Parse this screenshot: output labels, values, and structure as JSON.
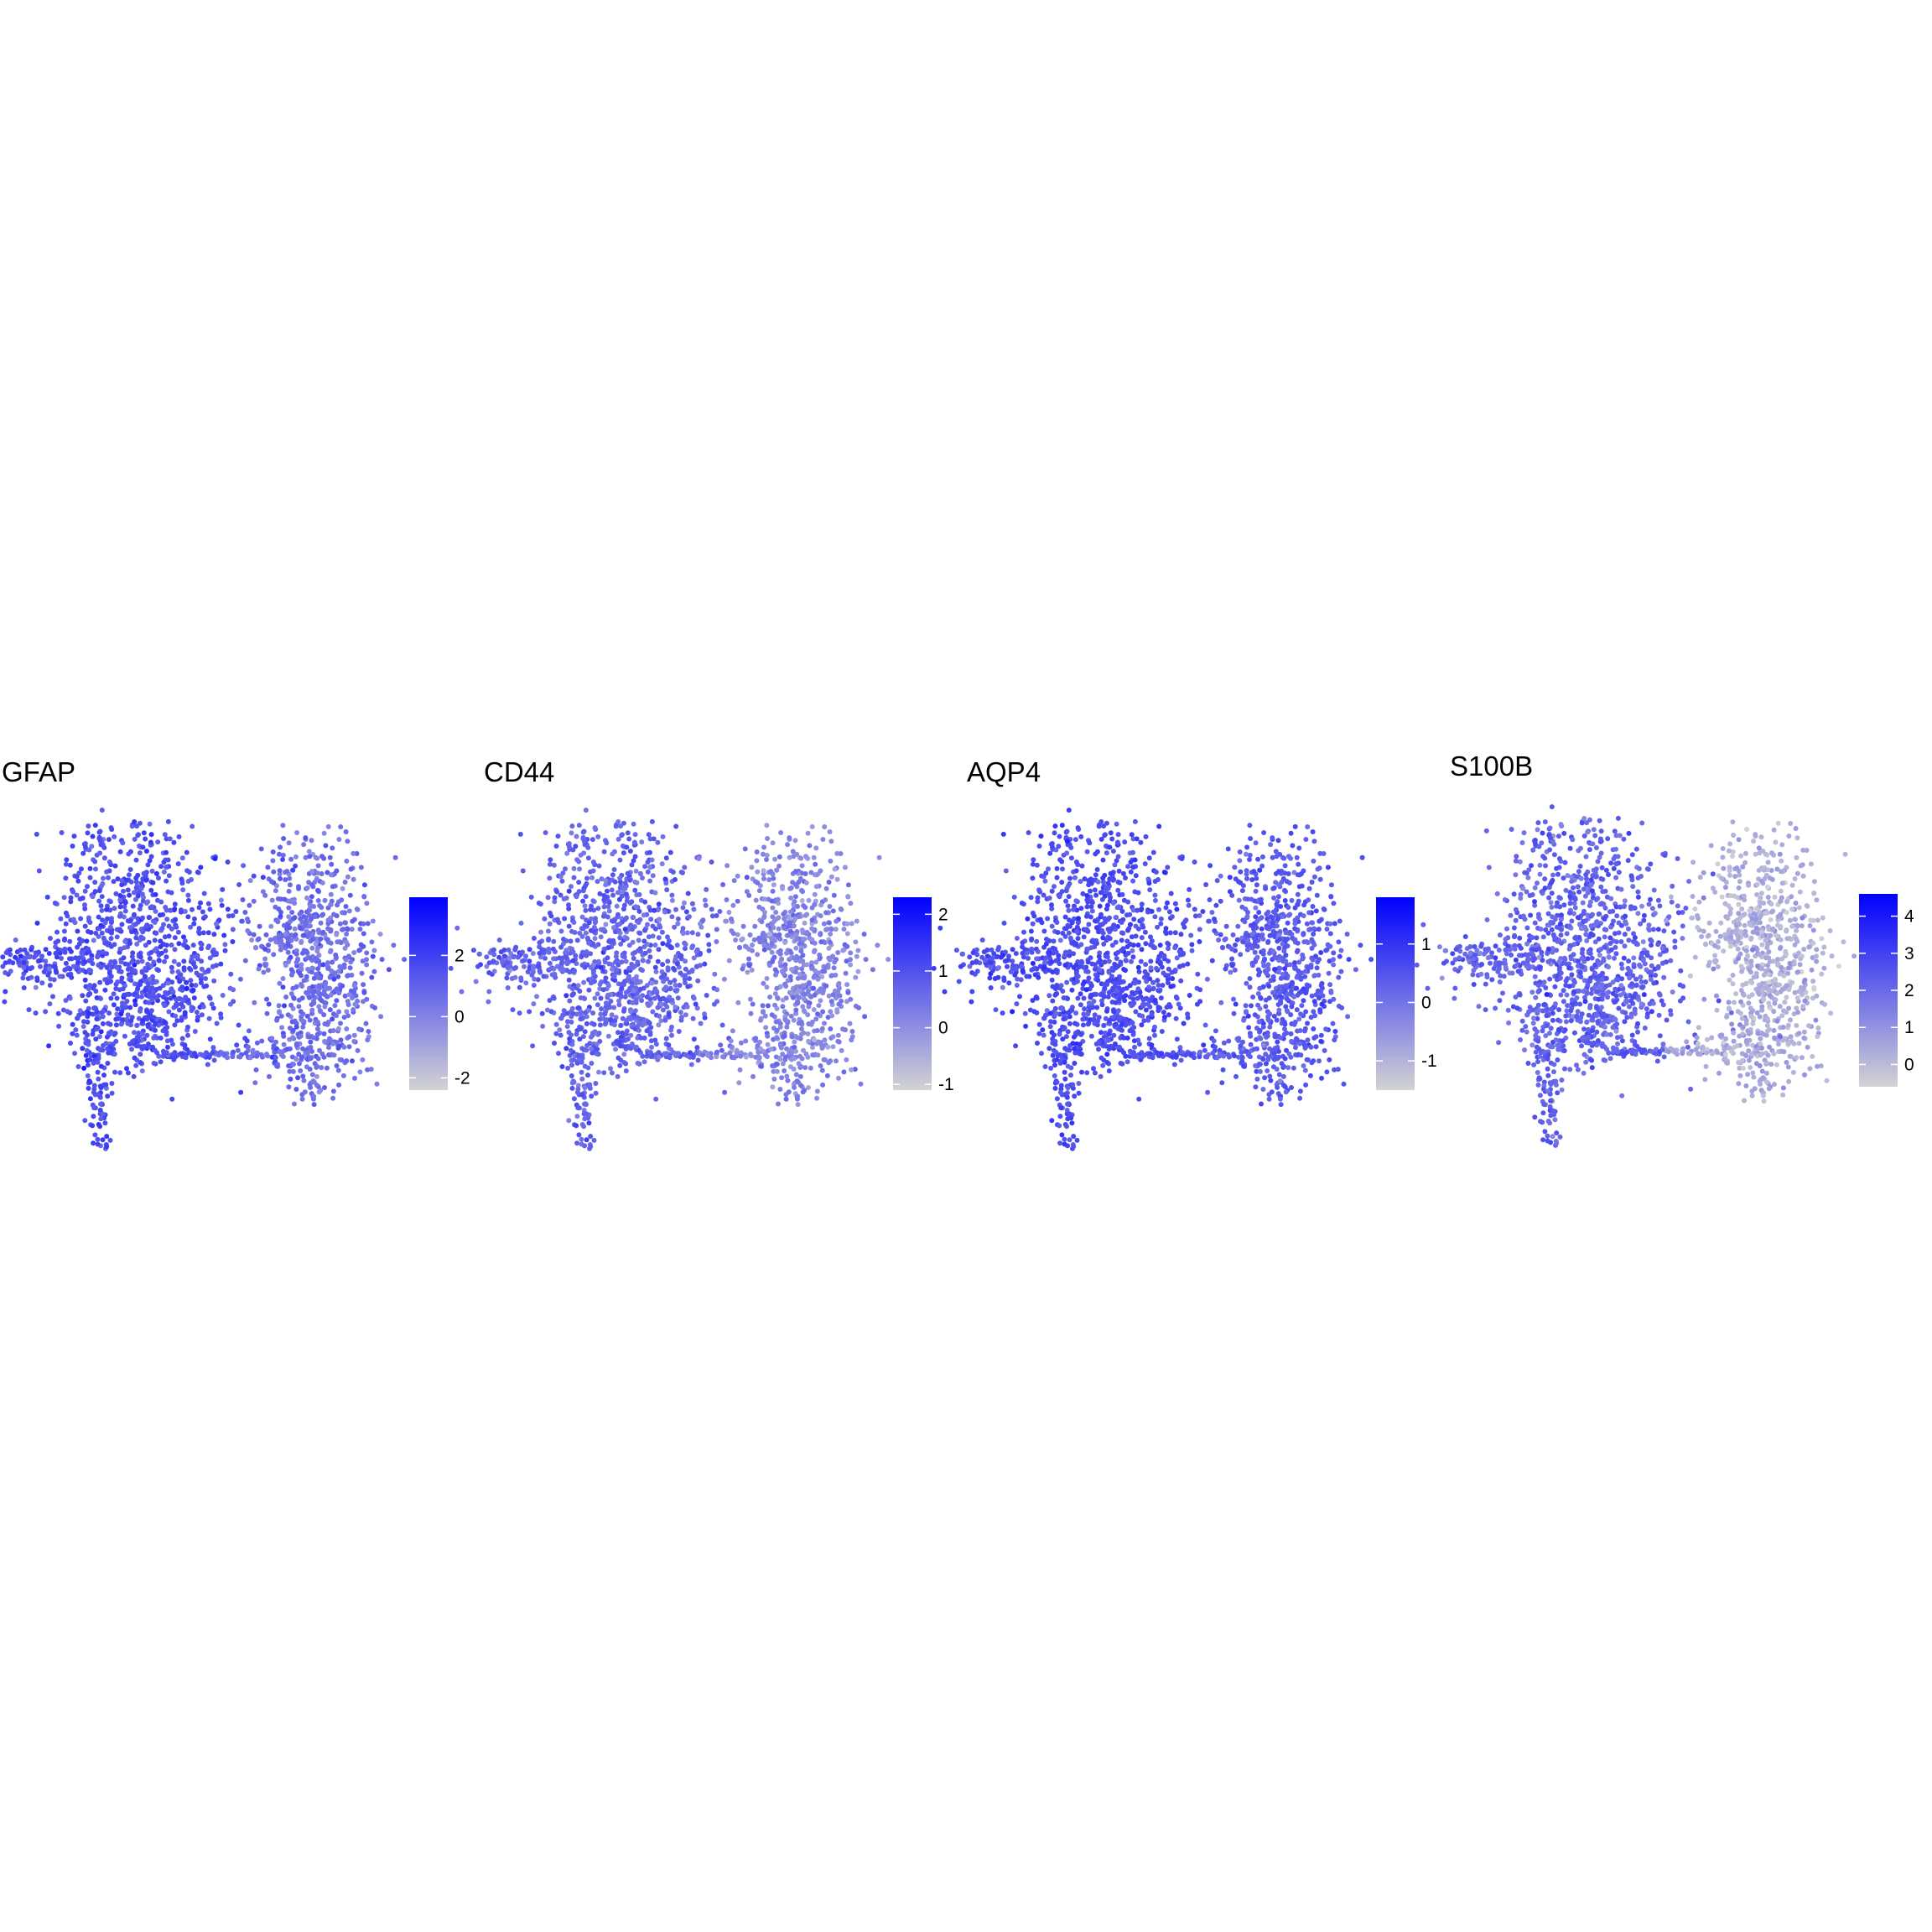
{
  "figure": {
    "panel_count": 4
  },
  "chart_data": [
    {
      "type": "scatter",
      "title": "GFAP",
      "xlabel": "",
      "ylabel": "",
      "grid": false,
      "legend": "right",
      "color_scale": {
        "low": "#d3d3d3",
        "high": "#0000ff",
        "min": -2.4,
        "max": 3.9
      },
      "colorbar_ticks": [
        {
          "value": 2,
          "label": "2"
        },
        {
          "value": 0,
          "label": "0"
        },
        {
          "value": -2,
          "label": "-2"
        }
      ],
      "expression_profile": {
        "left_cluster_mean": 1.5,
        "right_cluster_mean": 0.6,
        "variation": 0.9
      }
    },
    {
      "type": "scatter",
      "title": "CD44",
      "xlabel": "",
      "ylabel": "",
      "grid": false,
      "legend": "right",
      "color_scale": {
        "low": "#d3d3d3",
        "high": "#0000ff",
        "min": -1.1,
        "max": 2.3
      },
      "colorbar_ticks": [
        {
          "value": 2,
          "label": "2"
        },
        {
          "value": 1,
          "label": "1"
        },
        {
          "value": 0,
          "label": "0"
        },
        {
          "value": -1,
          "label": "-1"
        }
      ],
      "expression_profile": {
        "left_cluster_mean": 0.7,
        "right_cluster_mean": 0.2,
        "variation": 0.5
      }
    },
    {
      "type": "scatter",
      "title": "AQP4",
      "xlabel": "",
      "ylabel": "",
      "grid": false,
      "legend": "right",
      "color_scale": {
        "low": "#d3d3d3",
        "high": "#0000ff",
        "min": -1.5,
        "max": 1.8
      },
      "colorbar_ticks": [
        {
          "value": 1,
          "label": "1"
        },
        {
          "value": 0,
          "label": "0"
        },
        {
          "value": -1,
          "label": "-1"
        }
      ],
      "expression_profile": {
        "left_cluster_mean": 0.6,
        "right_cluster_mean": 0.4,
        "variation": 0.4
      }
    },
    {
      "type": "scatter",
      "title": "S100B",
      "xlabel": "",
      "ylabel": "",
      "grid": false,
      "legend": "right",
      "color_scale": {
        "low": "#d3d3d3",
        "high": "#0000ff",
        "min": -0.6,
        "max": 4.6
      },
      "colorbar_ticks": [
        {
          "value": 4,
          "label": "4"
        },
        {
          "value": 3,
          "label": "3"
        },
        {
          "value": 2,
          "label": "2"
        },
        {
          "value": 1,
          "label": "1"
        },
        {
          "value": 0,
          "label": "0"
        }
      ],
      "expression_profile": {
        "left_cluster_mean": 2.2,
        "right_cluster_mean": 0.3,
        "variation": 0.8
      }
    }
  ]
}
